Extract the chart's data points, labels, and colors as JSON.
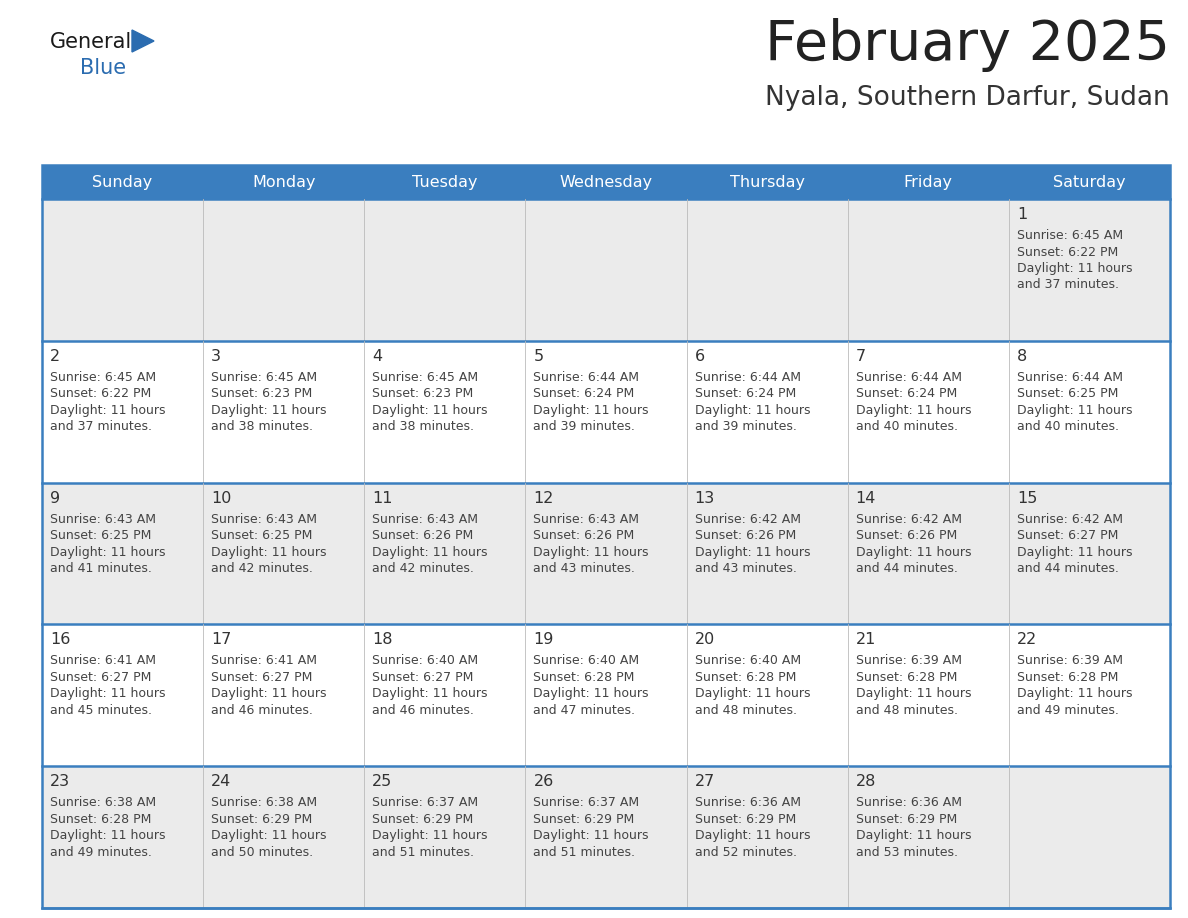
{
  "title": "February 2025",
  "subtitle": "Nyala, Southern Darfur, Sudan",
  "header_bg": "#3a7ebf",
  "header_text_color": "#ffffff",
  "day_names": [
    "Sunday",
    "Monday",
    "Tuesday",
    "Wednesday",
    "Thursday",
    "Friday",
    "Saturday"
  ],
  "cell_bg_row0": "#ebebeb",
  "cell_bg_row1": "#ffffff",
  "cell_bg_row2": "#ebebeb",
  "cell_bg_row3": "#ffffff",
  "cell_bg_row4": "#ebebeb",
  "row_line_color": "#3a7ebf",
  "text_color": "#444444",
  "day_num_color": "#333333",
  "logo_general_color": "#1a1a1a",
  "logo_blue_color": "#2b6cb0",
  "calendar": [
    [
      null,
      null,
      null,
      null,
      null,
      null,
      {
        "day": 1,
        "sunrise": "6:45 AM",
        "sunset": "6:22 PM",
        "daylight": "11 hours and 37 minutes."
      }
    ],
    [
      {
        "day": 2,
        "sunrise": "6:45 AM",
        "sunset": "6:22 PM",
        "daylight": "11 hours and 37 minutes."
      },
      {
        "day": 3,
        "sunrise": "6:45 AM",
        "sunset": "6:23 PM",
        "daylight": "11 hours and 38 minutes."
      },
      {
        "day": 4,
        "sunrise": "6:45 AM",
        "sunset": "6:23 PM",
        "daylight": "11 hours and 38 minutes."
      },
      {
        "day": 5,
        "sunrise": "6:44 AM",
        "sunset": "6:24 PM",
        "daylight": "11 hours and 39 minutes."
      },
      {
        "day": 6,
        "sunrise": "6:44 AM",
        "sunset": "6:24 PM",
        "daylight": "11 hours and 39 minutes."
      },
      {
        "day": 7,
        "sunrise": "6:44 AM",
        "sunset": "6:24 PM",
        "daylight": "11 hours and 40 minutes."
      },
      {
        "day": 8,
        "sunrise": "6:44 AM",
        "sunset": "6:25 PM",
        "daylight": "11 hours and 40 minutes."
      }
    ],
    [
      {
        "day": 9,
        "sunrise": "6:43 AM",
        "sunset": "6:25 PM",
        "daylight": "11 hours and 41 minutes."
      },
      {
        "day": 10,
        "sunrise": "6:43 AM",
        "sunset": "6:25 PM",
        "daylight": "11 hours and 42 minutes."
      },
      {
        "day": 11,
        "sunrise": "6:43 AM",
        "sunset": "6:26 PM",
        "daylight": "11 hours and 42 minutes."
      },
      {
        "day": 12,
        "sunrise": "6:43 AM",
        "sunset": "6:26 PM",
        "daylight": "11 hours and 43 minutes."
      },
      {
        "day": 13,
        "sunrise": "6:42 AM",
        "sunset": "6:26 PM",
        "daylight": "11 hours and 43 minutes."
      },
      {
        "day": 14,
        "sunrise": "6:42 AM",
        "sunset": "6:26 PM",
        "daylight": "11 hours and 44 minutes."
      },
      {
        "day": 15,
        "sunrise": "6:42 AM",
        "sunset": "6:27 PM",
        "daylight": "11 hours and 44 minutes."
      }
    ],
    [
      {
        "day": 16,
        "sunrise": "6:41 AM",
        "sunset": "6:27 PM",
        "daylight": "11 hours and 45 minutes."
      },
      {
        "day": 17,
        "sunrise": "6:41 AM",
        "sunset": "6:27 PM",
        "daylight": "11 hours and 46 minutes."
      },
      {
        "day": 18,
        "sunrise": "6:40 AM",
        "sunset": "6:27 PM",
        "daylight": "11 hours and 46 minutes."
      },
      {
        "day": 19,
        "sunrise": "6:40 AM",
        "sunset": "6:28 PM",
        "daylight": "11 hours and 47 minutes."
      },
      {
        "day": 20,
        "sunrise": "6:40 AM",
        "sunset": "6:28 PM",
        "daylight": "11 hours and 48 minutes."
      },
      {
        "day": 21,
        "sunrise": "6:39 AM",
        "sunset": "6:28 PM",
        "daylight": "11 hours and 48 minutes."
      },
      {
        "day": 22,
        "sunrise": "6:39 AM",
        "sunset": "6:28 PM",
        "daylight": "11 hours and 49 minutes."
      }
    ],
    [
      {
        "day": 23,
        "sunrise": "6:38 AM",
        "sunset": "6:28 PM",
        "daylight": "11 hours and 49 minutes."
      },
      {
        "day": 24,
        "sunrise": "6:38 AM",
        "sunset": "6:29 PM",
        "daylight": "11 hours and 50 minutes."
      },
      {
        "day": 25,
        "sunrise": "6:37 AM",
        "sunset": "6:29 PM",
        "daylight": "11 hours and 51 minutes."
      },
      {
        "day": 26,
        "sunrise": "6:37 AM",
        "sunset": "6:29 PM",
        "daylight": "11 hours and 51 minutes."
      },
      {
        "day": 27,
        "sunrise": "6:36 AM",
        "sunset": "6:29 PM",
        "daylight": "11 hours and 52 minutes."
      },
      {
        "day": 28,
        "sunrise": "6:36 AM",
        "sunset": "6:29 PM",
        "daylight": "11 hours and 53 minutes."
      },
      null
    ]
  ]
}
